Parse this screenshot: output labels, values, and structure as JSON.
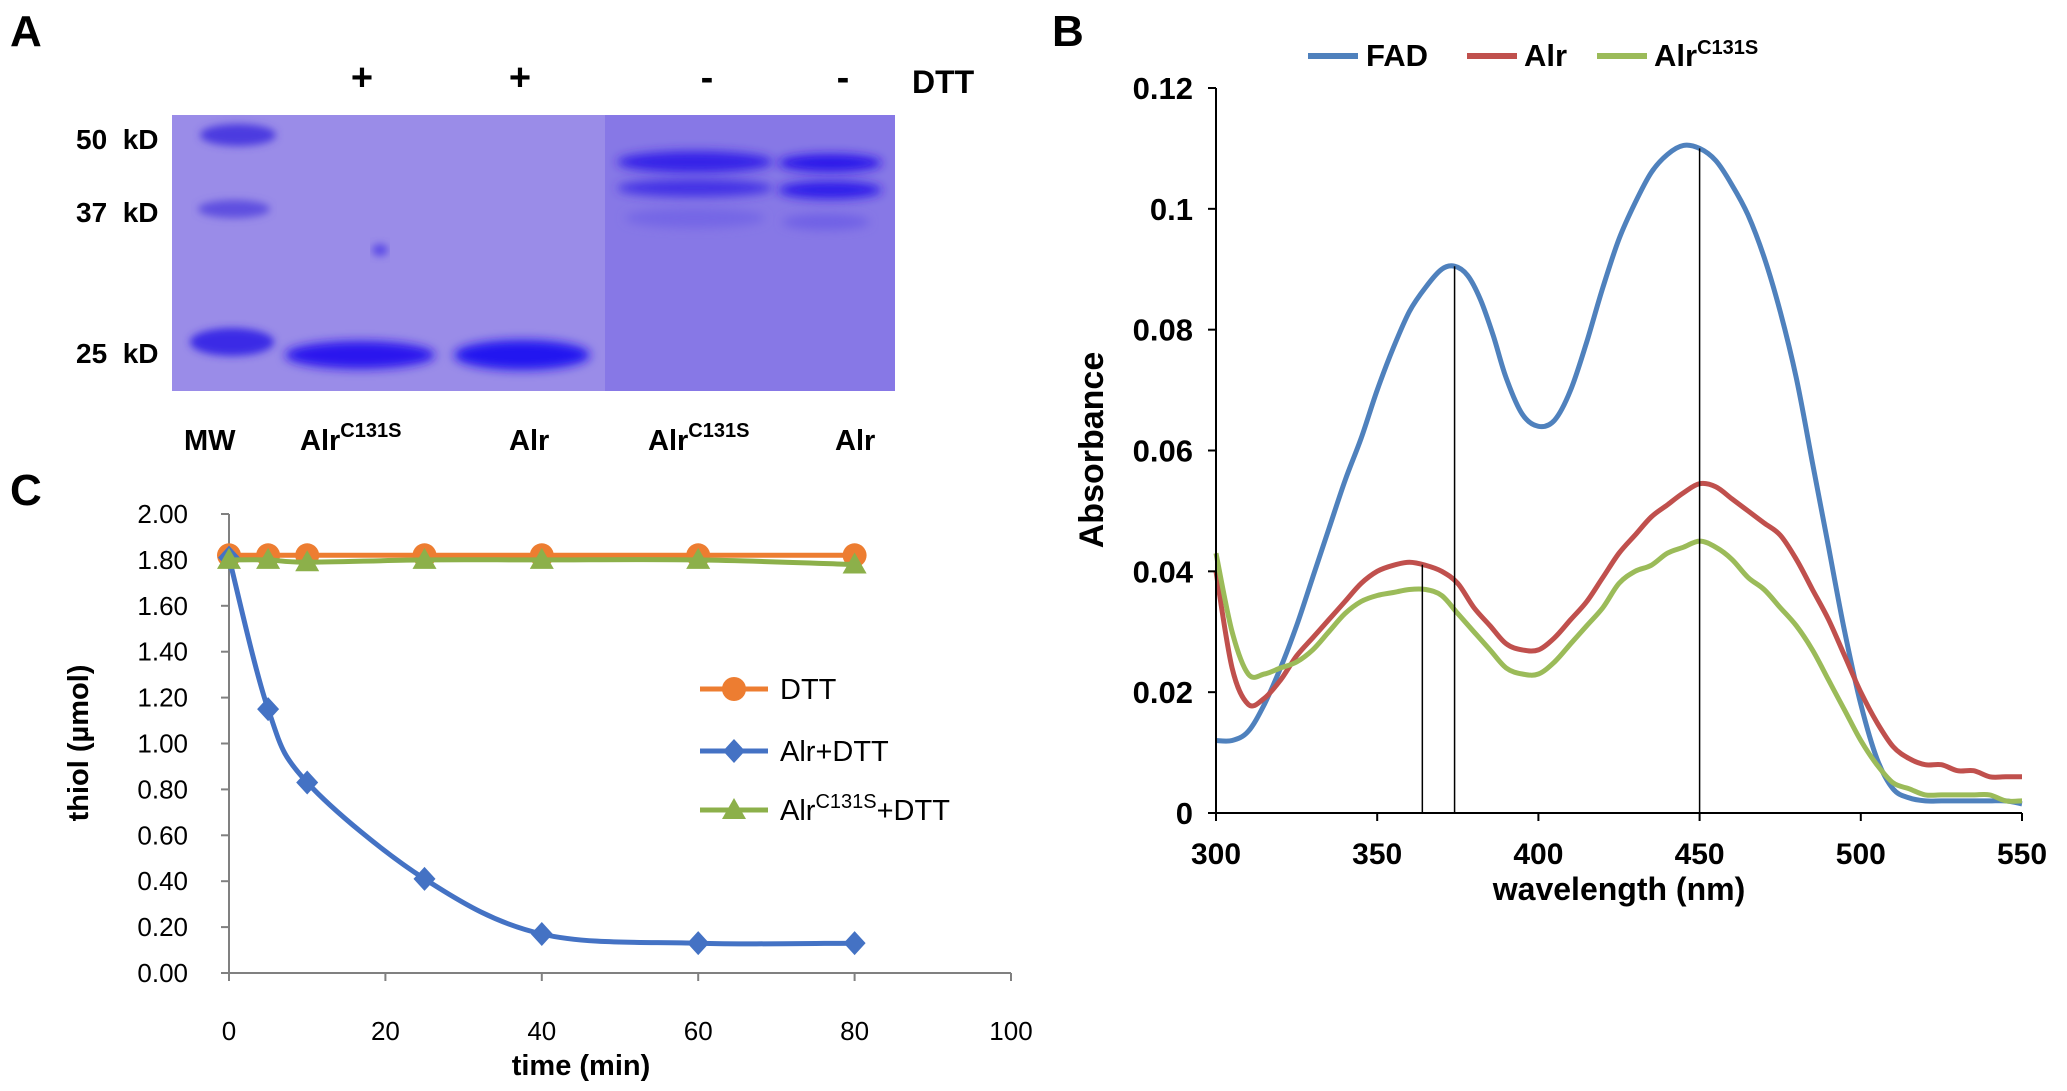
{
  "panels": {
    "a": {
      "letter": "A"
    },
    "b": {
      "letter": "B"
    },
    "c": {
      "letter": "C"
    }
  },
  "gel": {
    "dtt_label": "DTT",
    "dtt_signs": [
      "+",
      "+",
      "-",
      "-"
    ],
    "mw_markers": [
      "50  kD",
      "37  kD",
      "25  kD"
    ],
    "lanes": [
      {
        "base": "MW",
        "sup": ""
      },
      {
        "base": "Alr",
        "sup": "C131S"
      },
      {
        "base": "Alr",
        "sup": ""
      },
      {
        "base": "Alr",
        "sup": "C131S"
      },
      {
        "base": "Alr",
        "sup": ""
      }
    ],
    "colors": {
      "background": "#8e80e6",
      "band": "#3a28e6"
    }
  },
  "chart_data": [
    {
      "panel": "B",
      "type": "line",
      "xlabel": "wavelength (nm)",
      "ylabel": "Absorbance",
      "xlim": [
        300,
        550
      ],
      "ylim": [
        0,
        0.12
      ],
      "xticks": [
        "300",
        "350",
        "400",
        "450",
        "500",
        "550"
      ],
      "yticks": [
        "0",
        "0.02",
        "0.04",
        "0.06",
        "0.08",
        "0.1",
        "0.12"
      ],
      "legend_position": "top",
      "legend": [
        {
          "base": "FAD",
          "sup": ""
        },
        {
          "base": "Alr",
          "sup": ""
        },
        {
          "base": "Alr",
          "sup": "C131S"
        }
      ],
      "vertical_lines_x": [
        364,
        374,
        450
      ],
      "series": [
        {
          "name": "FAD",
          "color": "#4f81bd",
          "x": [
            300,
            305,
            310,
            315,
            320,
            325,
            330,
            335,
            340,
            345,
            350,
            355,
            360,
            365,
            370,
            374,
            378,
            382,
            386,
            390,
            395,
            400,
            405,
            410,
            415,
            420,
            425,
            430,
            435,
            440,
            445,
            450,
            455,
            460,
            465,
            470,
            475,
            480,
            485,
            490,
            495,
            500,
            505,
            510,
            515,
            520,
            525,
            530,
            535,
            540,
            545,
            550
          ],
          "y": [
            0.012,
            0.012,
            0.0135,
            0.018,
            0.024,
            0.031,
            0.039,
            0.047,
            0.055,
            0.062,
            0.07,
            0.077,
            0.083,
            0.087,
            0.09,
            0.0905,
            0.089,
            0.085,
            0.079,
            0.072,
            0.066,
            0.064,
            0.065,
            0.07,
            0.078,
            0.087,
            0.095,
            0.101,
            0.106,
            0.109,
            0.1105,
            0.11,
            0.108,
            0.104,
            0.099,
            0.092,
            0.083,
            0.072,
            0.058,
            0.044,
            0.03,
            0.018,
            0.009,
            0.004,
            0.0025,
            0.002,
            0.002,
            0.002,
            0.002,
            0.002,
            0.002,
            0.0015
          ]
        },
        {
          "name": "Alr",
          "color": "#c0504d",
          "x": [
            300,
            305,
            310,
            315,
            320,
            325,
            330,
            335,
            340,
            345,
            350,
            355,
            360,
            365,
            370,
            375,
            380,
            385,
            390,
            395,
            400,
            405,
            410,
            415,
            420,
            425,
            430,
            435,
            440,
            445,
            450,
            455,
            460,
            465,
            470,
            475,
            480,
            485,
            490,
            495,
            500,
            505,
            510,
            515,
            520,
            525,
            530,
            535,
            540,
            545,
            550
          ],
          "y": [
            0.04,
            0.024,
            0.018,
            0.019,
            0.022,
            0.026,
            0.029,
            0.032,
            0.035,
            0.038,
            0.04,
            0.041,
            0.0415,
            0.041,
            0.04,
            0.038,
            0.034,
            0.031,
            0.028,
            0.027,
            0.027,
            0.029,
            0.032,
            0.035,
            0.039,
            0.043,
            0.046,
            0.049,
            0.051,
            0.053,
            0.0545,
            0.054,
            0.052,
            0.05,
            0.048,
            0.046,
            0.042,
            0.037,
            0.032,
            0.026,
            0.02,
            0.015,
            0.011,
            0.009,
            0.008,
            0.008,
            0.007,
            0.007,
            0.006,
            0.006,
            0.006
          ]
        },
        {
          "name": "AlrC131S",
          "color": "#9bbb59",
          "x": [
            300,
            305,
            310,
            315,
            320,
            325,
            330,
            335,
            340,
            345,
            350,
            355,
            360,
            365,
            370,
            375,
            380,
            385,
            390,
            395,
            400,
            405,
            410,
            415,
            420,
            425,
            430,
            435,
            440,
            445,
            450,
            455,
            460,
            465,
            470,
            475,
            480,
            485,
            490,
            495,
            500,
            505,
            510,
            515,
            520,
            525,
            530,
            535,
            540,
            545,
            550
          ],
          "y": [
            0.043,
            0.03,
            0.023,
            0.023,
            0.024,
            0.025,
            0.027,
            0.03,
            0.033,
            0.035,
            0.036,
            0.0365,
            0.037,
            0.037,
            0.036,
            0.033,
            0.03,
            0.027,
            0.024,
            0.023,
            0.023,
            0.025,
            0.028,
            0.031,
            0.034,
            0.038,
            0.04,
            0.041,
            0.043,
            0.044,
            0.045,
            0.044,
            0.042,
            0.039,
            0.037,
            0.034,
            0.031,
            0.027,
            0.022,
            0.017,
            0.012,
            0.008,
            0.005,
            0.004,
            0.003,
            0.003,
            0.003,
            0.003,
            0.003,
            0.002,
            0.002
          ]
        }
      ]
    },
    {
      "panel": "C",
      "type": "line",
      "xlabel": "time (min)",
      "ylabel": "thiol (µmol)",
      "xlim": [
        0,
        100
      ],
      "ylim": [
        0,
        2
      ],
      "xticks": [
        "0",
        "20",
        "40",
        "60",
        "80",
        "100"
      ],
      "yticks": [
        "0.00",
        "0.20",
        "0.40",
        "0.60",
        "0.80",
        "1.00",
        "1.20",
        "1.40",
        "1.60",
        "1.80",
        "2.00"
      ],
      "legend_position": "right",
      "series": [
        {
          "name": "DTT",
          "color": "#ed7d31",
          "marker": "circle",
          "legend": {
            "base": "DTT",
            "sup": "",
            "tail": ""
          },
          "x": [
            0,
            5,
            10,
            25,
            40,
            60,
            80
          ],
          "y": [
            1.82,
            1.82,
            1.82,
            1.82,
            1.82,
            1.82,
            1.82
          ]
        },
        {
          "name": "Alr+DTT",
          "color": "#4472c4",
          "marker": "diamond",
          "legend": {
            "base": "Alr+DTT",
            "sup": "",
            "tail": ""
          },
          "x": [
            0,
            5,
            10,
            25,
            40,
            60,
            80
          ],
          "y": [
            1.81,
            1.15,
            0.83,
            0.41,
            0.17,
            0.13,
            0.13
          ]
        },
        {
          "name": "AlrC131S+DTT",
          "color": "#8cb04a",
          "marker": "triangle",
          "legend": {
            "base": "Alr",
            "sup": "C131S",
            "tail": "+DTT"
          },
          "x": [
            0,
            5,
            10,
            25,
            40,
            60,
            80
          ],
          "y": [
            1.8,
            1.8,
            1.79,
            1.8,
            1.8,
            1.8,
            1.78
          ]
        }
      ]
    }
  ]
}
